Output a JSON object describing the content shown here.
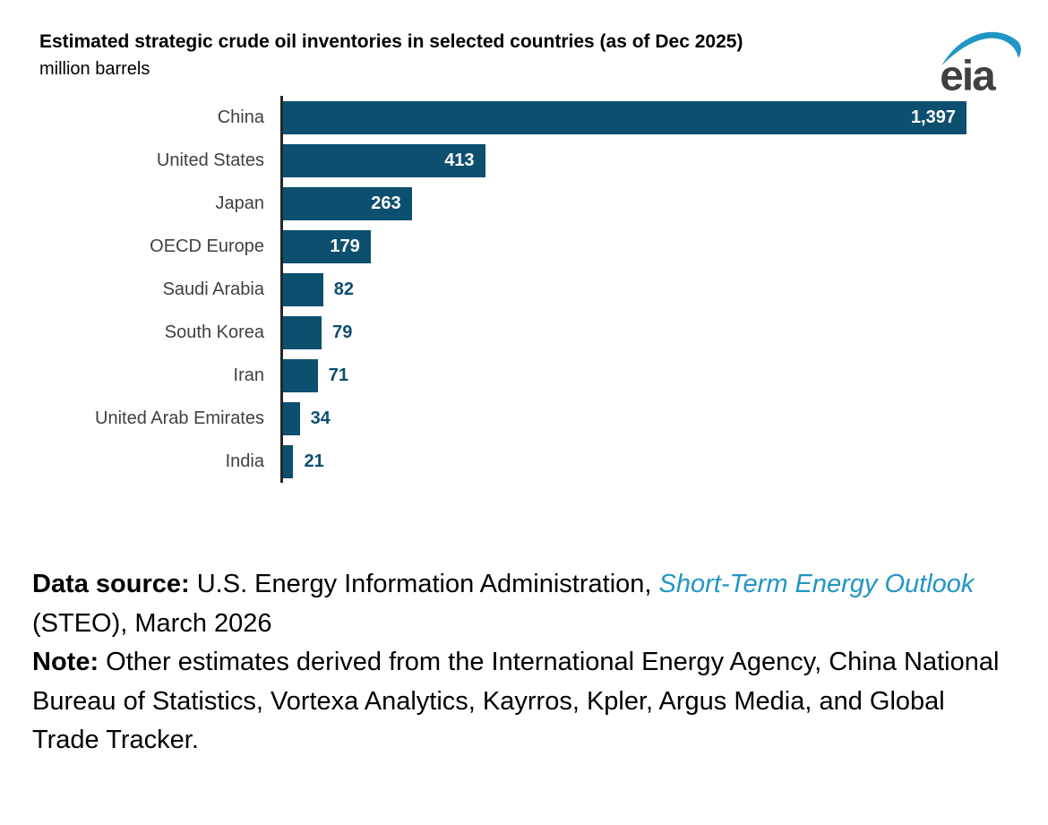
{
  "header": {
    "title": "Estimated strategic crude oil inventories in selected countries (as of Dec 2025)",
    "subtitle": "million barrels",
    "logo_text": "eia"
  },
  "colors": {
    "bar": "#0d4f6e",
    "axis": "#262626",
    "category_label": "#404040",
    "value_inside": "#ffffff",
    "link": "#2096c4",
    "logo_text": "#404040",
    "logo_swoosh": "#2096c4"
  },
  "chart_data": {
    "type": "bar",
    "orientation": "horizontal",
    "title": "Estimated strategic crude oil inventories in selected countries (as of Dec 2025)",
    "units": "million barrels",
    "categories": [
      "China",
      "United States",
      "Japan",
      "OECD Europe",
      "Saudi Arabia",
      "South Korea",
      "Iran",
      "United Arab Emirates",
      "India"
    ],
    "values": [
      1397,
      413,
      263,
      179,
      82,
      79,
      71,
      34,
      21
    ],
    "value_labels": [
      "1,397",
      "413",
      "263",
      "179",
      "82",
      "79",
      "71",
      "34",
      "21"
    ],
    "label_inside": [
      true,
      true,
      true,
      true,
      false,
      false,
      false,
      false,
      false
    ],
    "xlim": [
      0,
      1397
    ],
    "grid": false,
    "legend": false
  },
  "footer": {
    "data_source_label": "Data source:",
    "data_source_text": " U.S. Energy Information Administration, ",
    "data_source_link": "Short-Term Energy Outlook",
    "data_source_suffix": " (STEO), March 2026",
    "note_label": "Note:",
    "note_text": " Other estimates derived from the International Energy Agency, China National Bureau of Statistics, Vortexa Analytics, Kayrros, Kpler, Argus Media, and Global Trade Tracker."
  }
}
